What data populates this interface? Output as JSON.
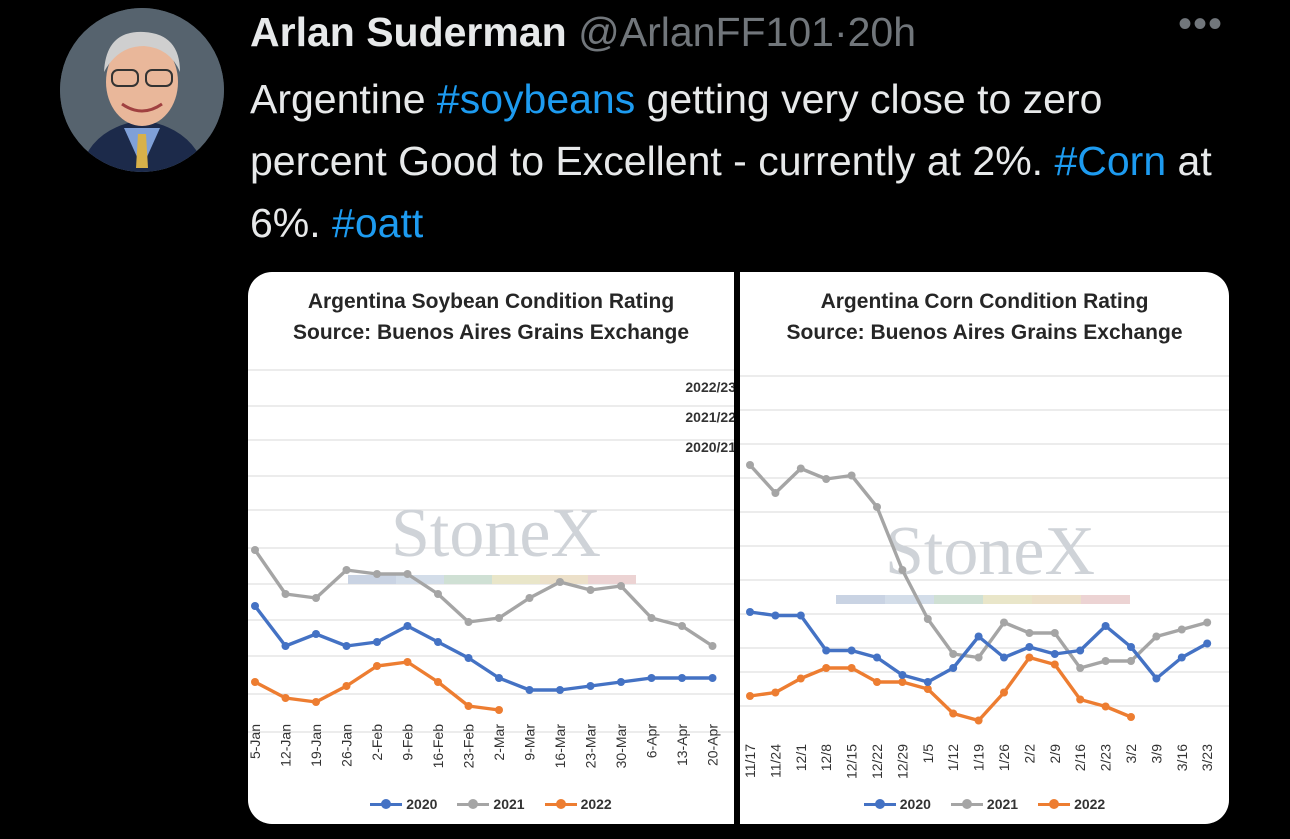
{
  "author": {
    "name": "Arlan Suderman",
    "handle": "@ArlanFF101",
    "separator": "·",
    "time": "20h"
  },
  "more_label": "•••",
  "tweet": {
    "t1": "Argentine ",
    "h1": "#soybeans",
    "t2": " getting very close to zero percent Good to Excellent - currently at 2%. ",
    "h2": "#Corn",
    "t3": " at 6%. ",
    "h3": "#oatt"
  },
  "colors": {
    "background": "#000000",
    "text": "#e7e9ea",
    "muted": "#71767b",
    "hashtag": "#1d9bf0",
    "s2020": "#4472c4",
    "s2021": "#a5a5a5",
    "s2022": "#ed7d31"
  },
  "watermark": "StoneX",
  "chart_data": [
    {
      "type": "line",
      "title": "Argentina Soybean Condition Rating",
      "subtitle": "Source: Buenos Aires Grains Exchange",
      "side_labels": [
        "2022/23",
        "2021/22",
        "2020/21"
      ],
      "categories": [
        "5-Jan",
        "12-Jan",
        "19-Jan",
        "26-Jan",
        "2-Feb",
        "9-Feb",
        "16-Feb",
        "23-Feb",
        "2-Mar",
        "9-Mar",
        "16-Mar",
        "23-Mar",
        "30-Mar",
        "6-Apr",
        "13-Apr",
        "20-Apr"
      ],
      "legend": [
        "2020",
        "2021",
        "2022"
      ],
      "grid": true,
      "series": [
        {
          "name": "2020",
          "color": "#4472c4",
          "values": [
            24,
            14,
            17,
            14,
            15,
            19,
            15,
            11,
            6,
            3,
            3,
            4,
            5,
            6,
            6,
            6
          ]
        },
        {
          "name": "2021",
          "color": "#a5a5a5",
          "values": [
            38,
            27,
            26,
            33,
            32,
            32,
            27,
            20,
            21,
            26,
            30,
            28,
            29,
            21,
            19,
            14
          ]
        },
        {
          "name": "2022",
          "color": "#ed7d31",
          "values": [
            5,
            1,
            0,
            4,
            9,
            10,
            5,
            -1,
            -2,
            null,
            null,
            null,
            null,
            null,
            null,
            null
          ]
        }
      ]
    },
    {
      "type": "line",
      "title": "Argentina Corn Condition Rating",
      "subtitle": "Source: Buenos Aires Grains Exchange",
      "categories": [
        "11/17",
        "11/24",
        "12/1",
        "12/8",
        "12/15",
        "12/22",
        "12/29",
        "1/5",
        "1/12",
        "1/19",
        "1/26",
        "2/2",
        "2/9",
        "2/16",
        "2/23",
        "3/2",
        "3/9",
        "3/16",
        "3/23"
      ],
      "legend": [
        "2020",
        "2021",
        "2022"
      ],
      "grid": true,
      "series": [
        {
          "name": "2020",
          "color": "#4472c4",
          "values": [
            26,
            25,
            25,
            15,
            15,
            13,
            8,
            6,
            10,
            19,
            13,
            16,
            14,
            15,
            22,
            16,
            7,
            13,
            17
          ]
        },
        {
          "name": "2021",
          "color": "#a5a5a5",
          "values": [
            68,
            60,
            67,
            64,
            65,
            56,
            38,
            24,
            14,
            13,
            23,
            20,
            20,
            10,
            12,
            12,
            19,
            21,
            23
          ]
        },
        {
          "name": "2022",
          "color": "#ed7d31",
          "values": [
            2,
            3,
            7,
            10,
            10,
            6,
            6,
            4,
            -3,
            -5,
            3,
            13,
            11,
            1,
            -1,
            -4,
            null,
            null,
            null
          ]
        }
      ]
    }
  ]
}
